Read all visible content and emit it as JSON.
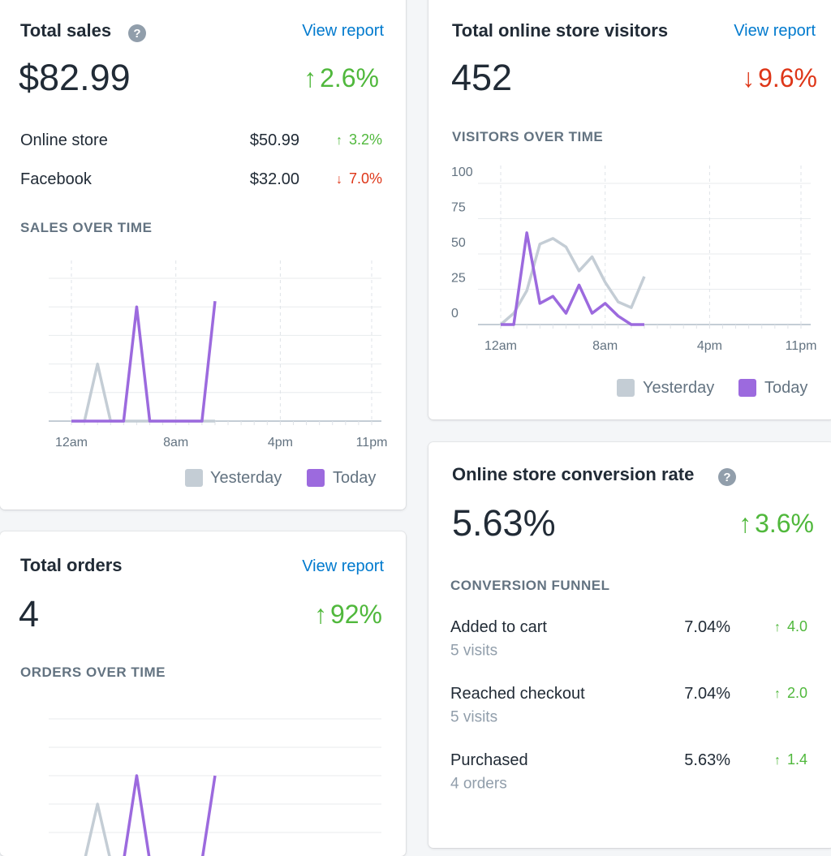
{
  "total_sales": {
    "title": "Total sales",
    "link": "View report",
    "value": "$82.99",
    "change": {
      "direction": "up",
      "value": "2.6%"
    },
    "breakdown": [
      {
        "label": "Online store",
        "value": "$50.99",
        "change": {
          "direction": "up",
          "value": "3.2%"
        }
      },
      {
        "label": "Facebook",
        "value": "$32.00",
        "change": {
          "direction": "down",
          "value": "7.0%"
        }
      }
    ],
    "chart_data": {
      "type": "line",
      "title": "SALES OVER TIME",
      "x": [
        0,
        1,
        2,
        3,
        4,
        5,
        6,
        7,
        8,
        9,
        10,
        11
      ],
      "xlim": [
        0,
        23
      ],
      "xticks": [
        {
          "value": 0,
          "label": "12am"
        },
        {
          "value": 8,
          "label": "8am"
        },
        {
          "value": 16,
          "label": "4pm"
        },
        {
          "value": 23,
          "label": "11pm"
        }
      ],
      "ylim": [
        0,
        5
      ],
      "yticks": [
        0,
        1,
        2,
        3,
        4,
        5
      ],
      "ytick_labels": false,
      "grid": true,
      "series": [
        {
          "name": "Yesterday",
          "color": "#c4cdd5",
          "values": [
            0,
            0,
            2,
            0,
            0,
            0,
            0,
            0,
            0,
            0,
            0,
            0
          ]
        },
        {
          "name": "Today",
          "color": "#9c6ade",
          "values": [
            0,
            0,
            0,
            0,
            0,
            4,
            0,
            0,
            0,
            0,
            0,
            4.2
          ]
        }
      ]
    }
  },
  "total_orders": {
    "title": "Total orders",
    "link": "View report",
    "value": "4",
    "change": {
      "direction": "up",
      "value": "92%"
    },
    "chart_data": {
      "type": "line",
      "title": "ORDERS OVER TIME",
      "x": [
        0,
        1,
        2,
        3,
        4,
        5,
        6,
        7,
        8,
        9,
        10,
        11
      ],
      "xlim": [
        0,
        23
      ],
      "ylim": [
        0,
        5
      ],
      "yticks": [
        0,
        1,
        2,
        3,
        4,
        5
      ],
      "ytick_labels": false,
      "grid": true,
      "series": [
        {
          "color": "#c4cdd5",
          "values": [
            0,
            0,
            2,
            0,
            0,
            0,
            0,
            0,
            0,
            0,
            0,
            0
          ]
        },
        {
          "color": "#9c6ade",
          "values": [
            0,
            0,
            0,
            0,
            0,
            3,
            0,
            0,
            0,
            0,
            0,
            3
          ]
        }
      ]
    }
  },
  "visitors": {
    "title": "Total online store visitors",
    "link": "View report",
    "value": "452",
    "change": {
      "direction": "down",
      "value": "9.6%"
    },
    "chart_data": {
      "type": "line",
      "title": "VISITORS OVER TIME",
      "x": [
        0,
        1,
        2,
        3,
        4,
        5,
        6,
        7,
        8,
        9,
        10,
        11
      ],
      "xlim": [
        0,
        23
      ],
      "xticks": [
        {
          "value": 0,
          "label": "12am"
        },
        {
          "value": 8,
          "label": "8am"
        },
        {
          "value": 16,
          "label": "4pm"
        },
        {
          "value": 23,
          "label": "11pm"
        }
      ],
      "ylim": [
        0,
        100
      ],
      "yticks": [
        0,
        25,
        50,
        75,
        100
      ],
      "ytick_labels": true,
      "grid": true,
      "series": [
        {
          "name": "Yesterday",
          "color": "#c4cdd5",
          "values": [
            0,
            8,
            24,
            57,
            61,
            55,
            38,
            48,
            30,
            16,
            12,
            34
          ]
        },
        {
          "name": "Today",
          "color": "#9c6ade",
          "values": [
            0,
            0,
            65,
            15,
            20,
            8,
            28,
            8,
            15,
            6,
            0,
            0
          ]
        }
      ]
    }
  },
  "conversion": {
    "title": "Online store conversion rate",
    "value": "5.63%",
    "change": {
      "direction": "up",
      "value": "3.6%"
    },
    "funnel_title": "CONVERSION FUNNEL",
    "funnel": [
      {
        "label": "Added to cart",
        "detail": "5 visits",
        "value": "7.04%",
        "change": {
          "direction": "up",
          "value": "4.0"
        }
      },
      {
        "label": "Reached checkout",
        "detail": "5 visits",
        "value": "7.04%",
        "change": {
          "direction": "up",
          "value": "2.0"
        }
      },
      {
        "label": "Purchased",
        "detail": "4 orders",
        "value": "5.63%",
        "change": {
          "direction": "up",
          "value": "1.4"
        }
      }
    ]
  }
}
